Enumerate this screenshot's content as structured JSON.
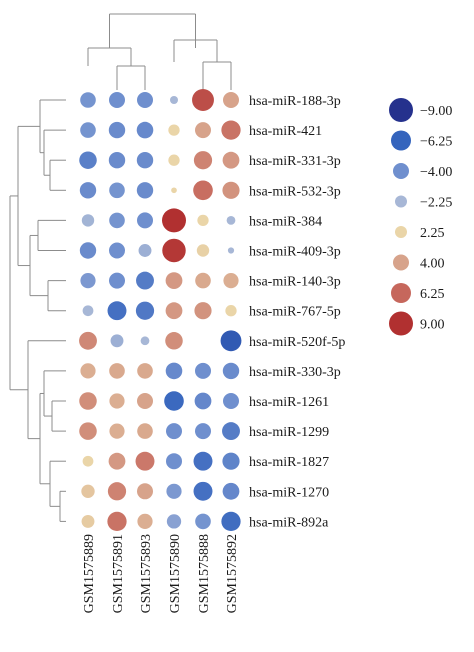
{
  "chart_data": {
    "type": "dot-heatmap",
    "rows": [
      "hsa-miR-188-3p",
      "hsa-miR-421",
      "hsa-miR-331-3p",
      "hsa-miR-532-3p",
      "hsa-miR-384",
      "hsa-miR-409-3p",
      "hsa-miR-140-3p",
      "hsa-miR-767-5p",
      "hsa-miR-520f-5p",
      "hsa-miR-330-3p",
      "hsa-miR-1261",
      "hsa-miR-1299",
      "hsa-miR-1827",
      "hsa-miR-1270",
      "hsa-miR-892a"
    ],
    "columns": [
      "GSM1575889",
      "GSM1575891",
      "GSM1575893",
      "GSM1575890",
      "GSM1575888",
      "GSM1575892"
    ],
    "values": [
      [
        -3.8,
        -4.0,
        -4.0,
        -1.0,
        7.5,
        4.0
      ],
      [
        -3.8,
        -4.2,
        -4.3,
        2.0,
        4.0,
        5.8
      ],
      [
        -4.8,
        -4.2,
        -4.2,
        2.0,
        5.2,
        4.4
      ],
      [
        -4.2,
        -3.8,
        -4.2,
        0.5,
        6.0,
        4.6
      ],
      [
        -2.4,
        -3.8,
        -4.0,
        9.0,
        2.0,
        -1.2
      ],
      [
        -4.2,
        -4.0,
        -2.6,
        8.6,
        2.4,
        -0.6
      ],
      [
        -3.6,
        -4.0,
        -5.0,
        4.4,
        3.8,
        3.6
      ],
      [
        -1.8,
        -5.6,
        -5.2,
        4.4,
        4.6,
        2.0
      ],
      [
        5.0,
        -2.6,
        -1.2,
        4.8,
        0.0,
        -6.8
      ],
      [
        3.6,
        3.8,
        3.8,
        -4.3,
        -4.0,
        -4.2
      ],
      [
        4.8,
        3.6,
        4.0,
        -6.0,
        -4.4,
        -4.0
      ],
      [
        4.8,
        3.6,
        3.8,
        -4.0,
        -4.0,
        -5.0
      ],
      [
        1.8,
        4.4,
        5.6,
        -4.0,
        -5.6,
        -4.6
      ],
      [
        2.8,
        5.2,
        4.0,
        -3.6,
        -5.6,
        -4.4
      ],
      [
        2.6,
        5.8,
        3.6,
        -3.2,
        -3.8,
        -5.8
      ]
    ],
    "legend": {
      "placement": "right",
      "entries": [
        -9.0,
        -6.25,
        -4.0,
        -2.25,
        2.25,
        4.0,
        6.25,
        9.0
      ],
      "labels": [
        "−9.00",
        "−6.25",
        "−4.00",
        "−2.25",
        "2.25",
        "4.00",
        "6.25",
        "9.00"
      ]
    },
    "colors": {
      "-9": "#25318d",
      "-6.25": "#3464bd",
      "-4": "#6f8fce",
      "-2.25": "#a7b7d6",
      "2.25": "#ead5a8",
      "4": "#d7a38b",
      "6.25": "#c6675c",
      "9": "#b13030"
    },
    "row_dendrogram": true,
    "column_dendrogram": true
  }
}
